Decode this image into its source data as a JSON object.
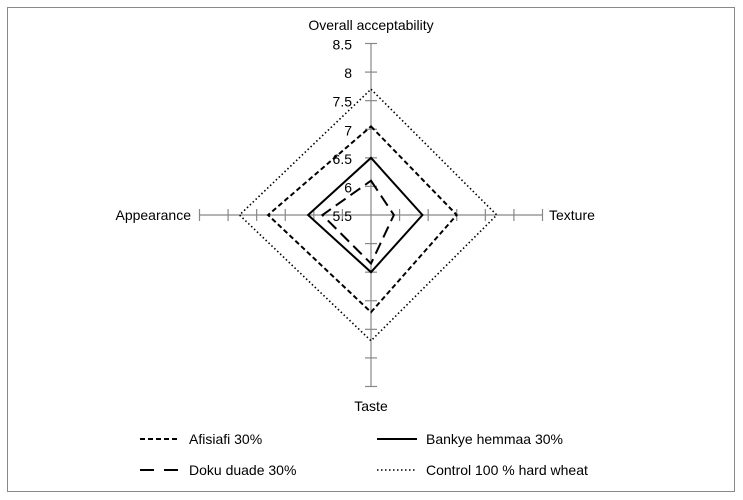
{
  "chart_data": {
    "type": "radar",
    "axes": [
      "Overall acceptability",
      "Texture",
      "Taste",
      "Appearance"
    ],
    "rlim": [
      5.5,
      8.5
    ],
    "ticks": [
      "5.5",
      "6",
      "6.5",
      "7",
      "7.5",
      "8",
      "8.5"
    ],
    "tick_values": [
      5.5,
      6,
      6.5,
      7,
      7.5,
      8,
      8.5
    ],
    "series": [
      {
        "name": "Afisiafi 30%",
        "style": "short-dash",
        "values": [
          7.05,
          7.0,
          7.2,
          7.3
        ]
      },
      {
        "name": "Bankye hemmaa 30%",
        "style": "solid",
        "values": [
          6.5,
          6.4,
          6.5,
          6.6
        ]
      },
      {
        "name": "Doku duade 30%",
        "style": "long-dash",
        "values": [
          6.1,
          5.9,
          6.35,
          6.35
        ]
      },
      {
        "name": "Control 100 % hard wheat",
        "style": "dotted",
        "values": [
          7.7,
          7.7,
          7.7,
          7.8
        ]
      }
    ],
    "legend_position": "bottom",
    "colors": {
      "axis": "#888888",
      "series": "#000000"
    }
  }
}
